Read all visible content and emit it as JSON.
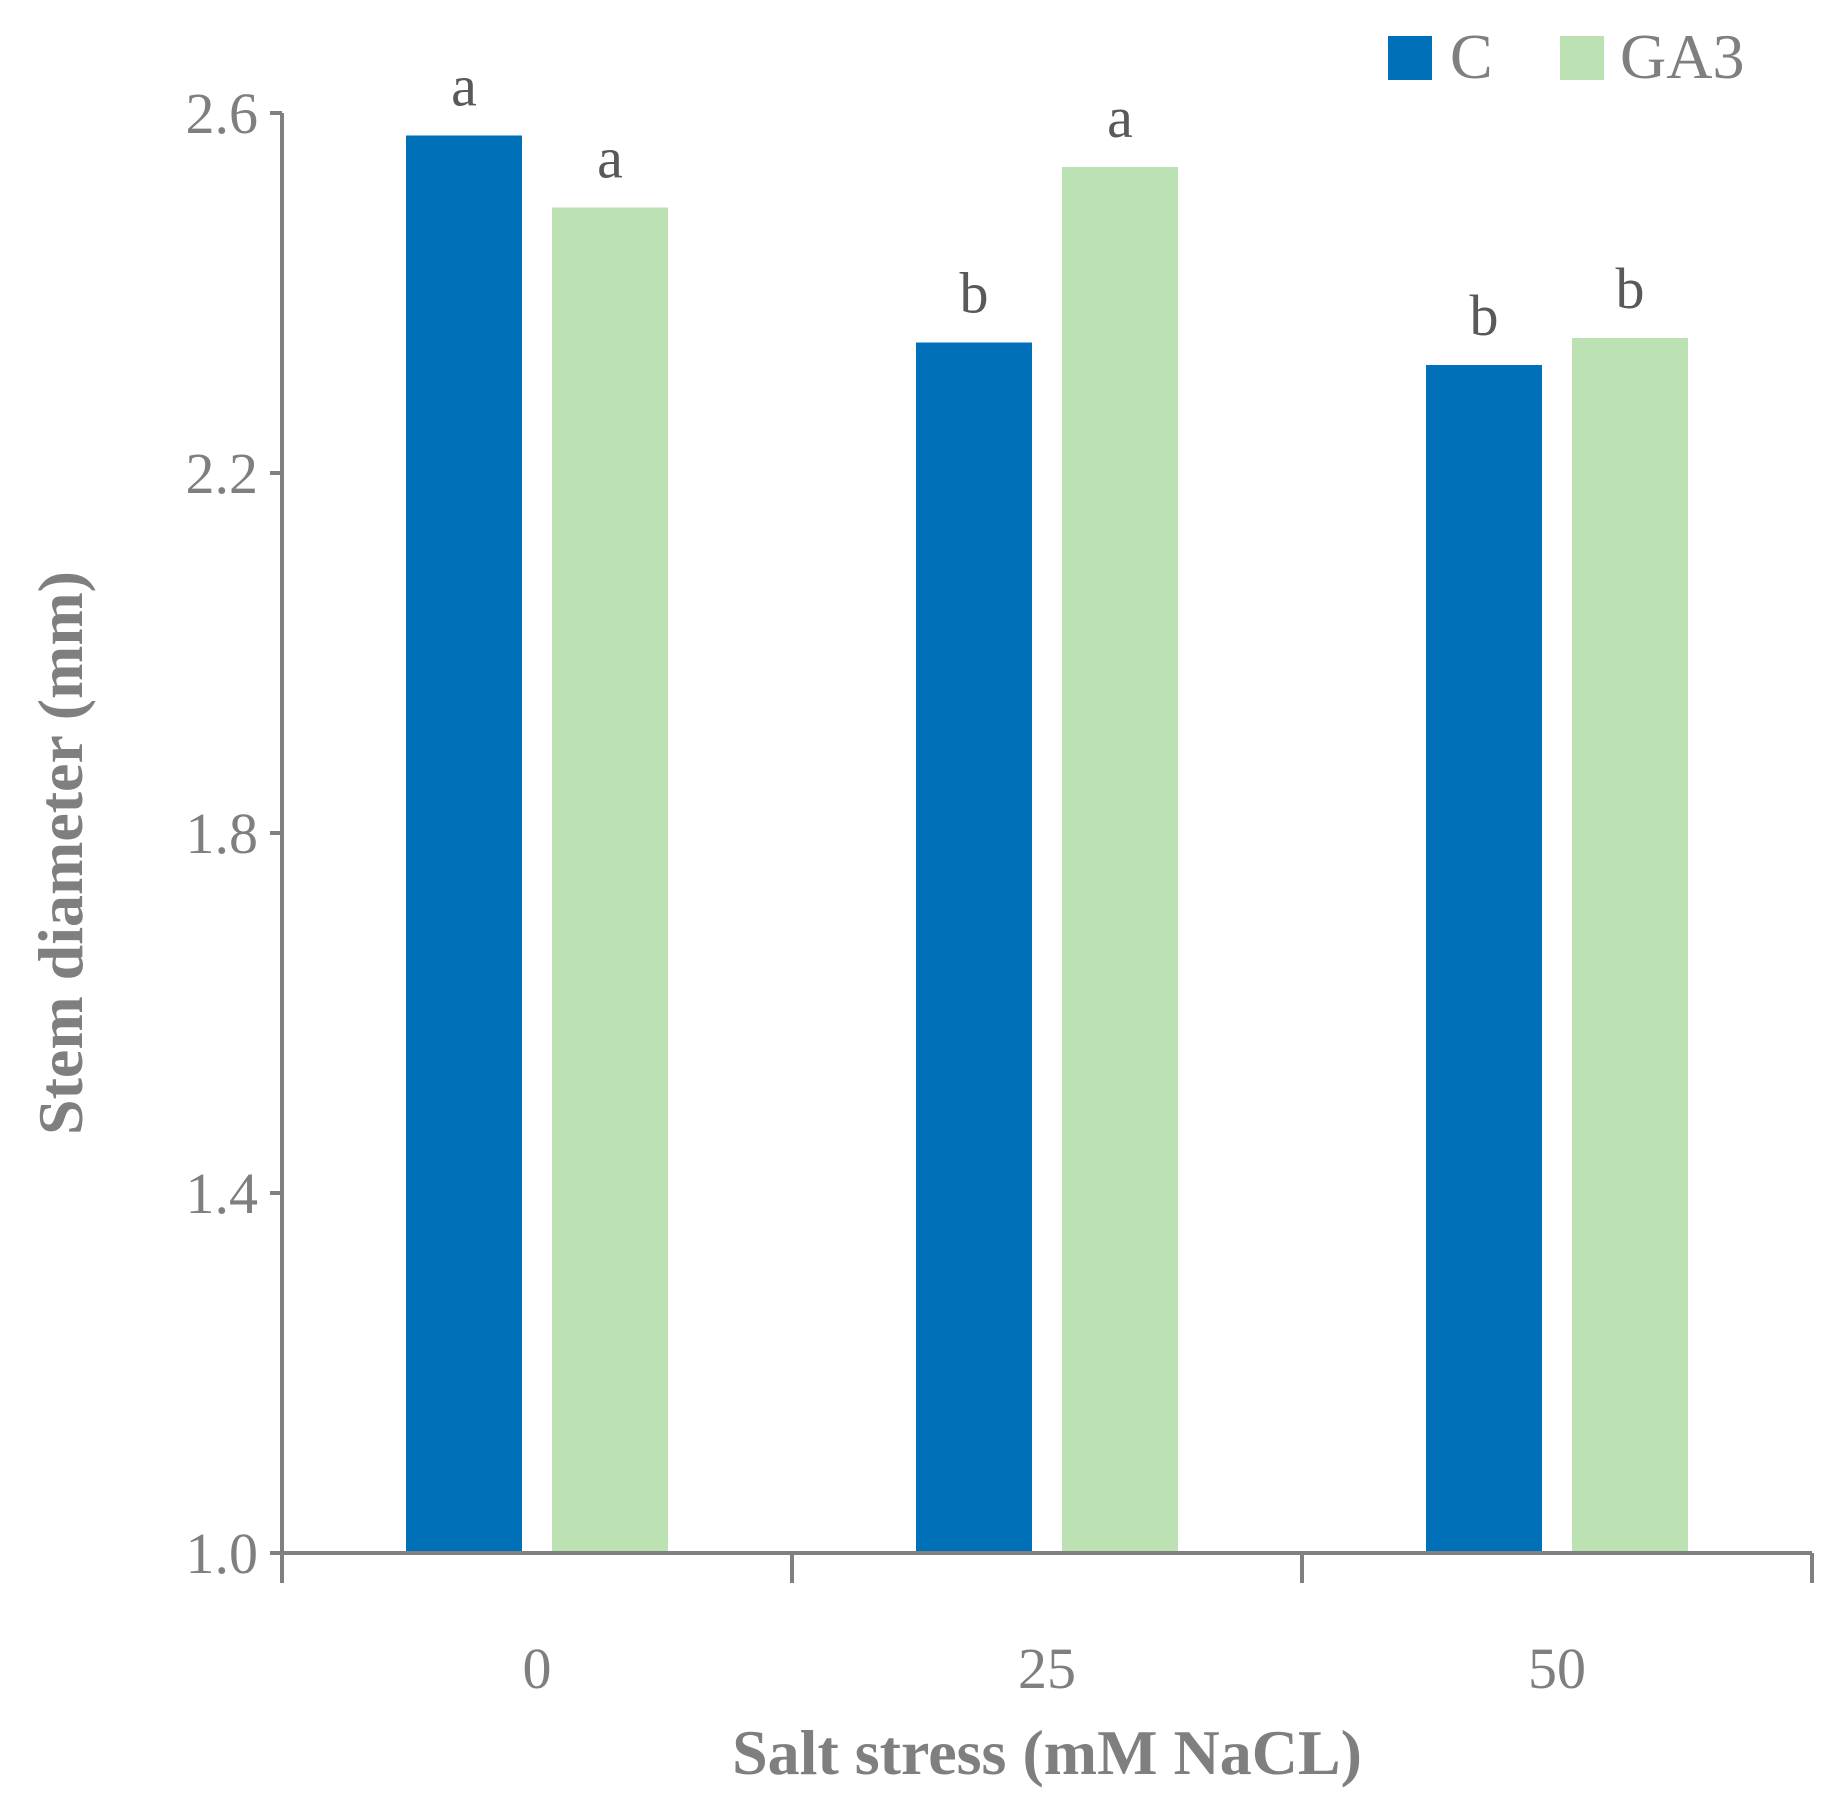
{
  "chart_data": {
    "type": "bar",
    "title": "",
    "xlabel": "Salt stress (mM NaCL)",
    "ylabel": "Stem diameter (mm)",
    "categories": [
      "0",
      "25",
      "50"
    ],
    "ylim": [
      1.0,
      2.6
    ],
    "yticks": [
      1.0,
      1.4,
      1.8,
      2.2,
      2.6
    ],
    "ytick_labels": [
      "1.0",
      "1.4",
      "1.8",
      "2.2",
      "2.6"
    ],
    "grid": false,
    "legend": {
      "position": "top-right"
    },
    "series": [
      {
        "name": "C",
        "color": "#0070b8",
        "values": [
          2.575,
          2.345,
          2.32
        ],
        "labels": [
          "a",
          "b",
          "b"
        ]
      },
      {
        "name": "GA3",
        "color": "#bce2b4",
        "values": [
          2.495,
          2.54,
          2.35
        ],
        "labels": [
          "a",
          "a",
          "b"
        ]
      }
    ]
  }
}
